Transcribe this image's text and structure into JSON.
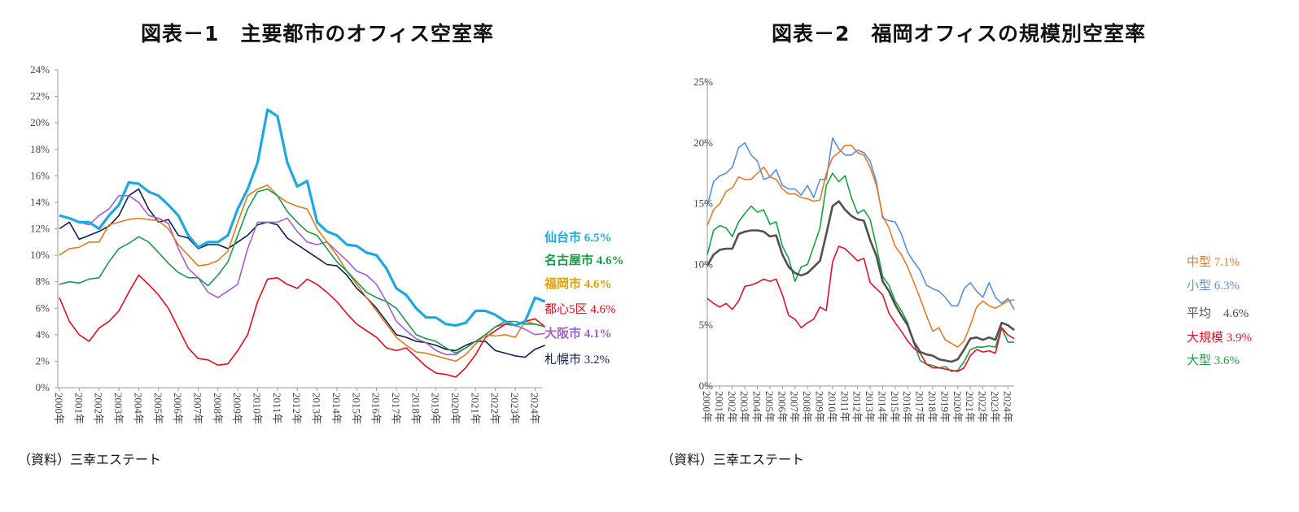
{
  "chart_data": [
    {
      "type": "line",
      "title": "図表－1　主要都市のオフィス空室率",
      "source": "（資料）三幸エステート",
      "ylim": [
        0,
        24
      ],
      "yticks": [
        "0%",
        "2%",
        "4%",
        "6%",
        "8%",
        "10%",
        "12%",
        "14%",
        "16%",
        "18%",
        "20%",
        "22%",
        "24%"
      ],
      "ytick_values": [
        0,
        2,
        4,
        6,
        8,
        10,
        12,
        14,
        16,
        18,
        20,
        22,
        24
      ],
      "xticks": [
        "2000年",
        "2001年",
        "2002年",
        "2003年",
        "2004年",
        "2005年",
        "2006年",
        "2007年",
        "2008年",
        "2009年",
        "2010年",
        "2011年",
        "2012年",
        "2013年",
        "2014年",
        "2015年",
        "2016年",
        "2017年",
        "2018年",
        "2019年",
        "2020年",
        "2021年",
        "2022年",
        "2023年",
        "2024年"
      ],
      "x_start": 2000,
      "x_step": 0.5,
      "series": [
        {
          "name": "仙台市",
          "label": "仙台市 6.5%",
          "color": "#1ea8e0",
          "bold": true,
          "width": 3.2,
          "values": [
            13.0,
            12.8,
            12.5,
            12.5,
            12.0,
            13.0,
            13.8,
            15.5,
            15.4,
            14.8,
            14.5,
            13.8,
            13.0,
            11.5,
            10.6,
            11.0,
            11.0,
            11.5,
            13.5,
            15.0,
            17.0,
            21.0,
            20.5,
            17.0,
            15.2,
            15.6,
            12.5,
            11.8,
            11.5,
            10.8,
            10.7,
            10.2,
            10.0,
            9.0,
            7.5,
            7.0,
            6.0,
            5.3,
            5.3,
            4.8,
            4.7,
            4.9,
            5.8,
            5.8,
            5.5,
            5.0,
            4.7,
            5.0,
            6.8,
            6.5
          ]
        },
        {
          "name": "名古屋市",
          "label": "名古屋市 4.6%",
          "color": "#1a9a4a",
          "bold": true,
          "width": 1.6,
          "values": [
            7.8,
            8.0,
            7.9,
            8.2,
            8.3,
            9.5,
            10.5,
            10.9,
            11.4,
            11.0,
            10.2,
            9.4,
            8.7,
            8.3,
            8.3,
            7.7,
            8.5,
            9.5,
            11.5,
            13.5,
            14.8,
            15.0,
            14.5,
            13.3,
            12.5,
            11.8,
            11.5,
            10.5,
            9.5,
            8.8,
            8.0,
            7.2,
            6.8,
            6.5,
            6.0,
            5.0,
            4.0,
            3.7,
            3.5,
            3.0,
            2.6,
            3.0,
            3.5,
            4.0,
            4.6,
            5.0,
            5.0,
            4.8,
            4.8,
            4.6
          ]
        },
        {
          "name": "福岡市",
          "label": "福岡市 4.6%",
          "color": "#e07b22",
          "label_color": "#e0a000",
          "bold": true,
          "width": 1.6,
          "values": [
            10.0,
            10.5,
            10.6,
            11.0,
            11.0,
            12.3,
            12.5,
            12.7,
            12.8,
            12.7,
            12.6,
            12.0,
            10.8,
            10.0,
            9.2,
            9.3,
            9.6,
            10.3,
            12.5,
            14.5,
            15.0,
            15.3,
            14.5,
            14.0,
            13.7,
            13.5,
            12.0,
            11.0,
            10.0,
            8.8,
            7.8,
            6.8,
            5.8,
            4.8,
            3.8,
            3.2,
            2.7,
            2.6,
            2.4,
            2.2,
            2.0,
            2.5,
            3.3,
            4.0,
            3.9,
            4.0,
            3.8,
            5.0,
            4.8,
            4.6
          ]
        },
        {
          "name": "都心5区",
          "label": "都心5区 4.6%",
          "color": "#e00d1a",
          "bold": false,
          "width": 1.6,
          "values": [
            6.8,
            5.0,
            4.0,
            3.5,
            4.5,
            5.0,
            5.8,
            7.2,
            8.5,
            7.8,
            7.0,
            6.0,
            4.5,
            3.0,
            2.2,
            2.1,
            1.7,
            1.8,
            2.8,
            4.0,
            6.5,
            8.2,
            8.3,
            7.8,
            7.5,
            8.2,
            7.8,
            7.2,
            6.5,
            5.6,
            4.8,
            4.3,
            3.8,
            3.0,
            2.8,
            3.0,
            2.3,
            1.6,
            1.1,
            1.0,
            0.8,
            1.5,
            2.5,
            3.8,
            4.3,
            4.8,
            4.7,
            5.0,
            5.2,
            4.6
          ]
        },
        {
          "name": "大阪市",
          "label": "大阪市 4.1%",
          "color": "#a35fd0",
          "bold": true,
          "width": 1.6,
          "values": [
            13.0,
            12.8,
            12.5,
            12.3,
            13.0,
            13.5,
            14.5,
            14.5,
            14.0,
            13.0,
            12.8,
            12.4,
            10.5,
            9.0,
            8.3,
            7.2,
            6.8,
            7.3,
            7.8,
            10.5,
            12.5,
            12.5,
            12.5,
            12.8,
            11.8,
            11.0,
            10.8,
            11.0,
            10.3,
            9.6,
            8.8,
            8.5,
            7.8,
            6.5,
            5.0,
            4.3,
            3.7,
            3.4,
            2.8,
            2.5,
            2.5,
            3.0,
            3.5,
            4.0,
            4.6,
            4.8,
            4.7,
            4.4,
            4.0,
            4.1
          ]
        },
        {
          "name": "札幌市",
          "label": "札幌市 3.2%",
          "color": "#0f2050",
          "bold": false,
          "width": 1.6,
          "values": [
            12.0,
            12.5,
            11.2,
            11.5,
            11.8,
            12.2,
            13.0,
            14.5,
            15.0,
            13.5,
            12.5,
            12.7,
            11.5,
            11.3,
            10.5,
            10.8,
            10.8,
            10.5,
            11.0,
            11.5,
            12.3,
            12.5,
            12.3,
            11.3,
            10.8,
            10.3,
            9.8,
            9.3,
            9.2,
            8.5,
            7.5,
            6.8,
            6.0,
            5.0,
            4.0,
            3.8,
            3.5,
            3.4,
            3.2,
            2.9,
            2.8,
            3.2,
            3.5,
            3.5,
            2.8,
            2.6,
            2.4,
            2.3,
            2.9,
            3.2
          ]
        }
      ]
    },
    {
      "type": "line",
      "title": "図表－2　福岡オフィスの規模別空室率",
      "source": "（資料）三幸エステート",
      "ylim": [
        0,
        25
      ],
      "yticks": [
        "0%",
        "5%",
        "10%",
        "15%",
        "20%",
        "25%"
      ],
      "ytick_values": [
        0,
        5,
        10,
        15,
        20,
        25
      ],
      "xticks": [
        "2000年",
        "2001年",
        "2002年",
        "2003年",
        "2004年",
        "2005年",
        "2006年",
        "2007年",
        "2008年",
        "2009年",
        "2010年",
        "2011年",
        "2012年",
        "2013年",
        "2014年",
        "2015年",
        "2016年",
        "2017年",
        "2018年",
        "2019年",
        "2020年",
        "2021年",
        "2022年",
        "2023年",
        "2024年"
      ],
      "x_start": 2000,
      "x_step": 0.5,
      "series": [
        {
          "name": "中型",
          "label": "中型 7.1%",
          "color": "#e07b30",
          "width": 1.6,
          "values": [
            13.2,
            14.5,
            15.0,
            16.0,
            16.3,
            17.2,
            17.0,
            17.0,
            17.5,
            18.0,
            17.2,
            17.0,
            16.2,
            15.8,
            15.8,
            15.5,
            15.4,
            15.2,
            15.3,
            17.5,
            18.8,
            19.2,
            19.8,
            19.8,
            19.2,
            19.0,
            18.0,
            16.5,
            14.0,
            13.0,
            11.5,
            10.8,
            9.8,
            8.5,
            7.2,
            5.8,
            4.5,
            4.8,
            3.8,
            3.5,
            3.2,
            3.7,
            5.0,
            6.5,
            7.0,
            6.6,
            6.4,
            6.7,
            7.0,
            7.1
          ]
        },
        {
          "name": "小型",
          "label": "小型 6.3%",
          "color": "#5b8fd0",
          "width": 1.6,
          "values": [
            14.8,
            16.8,
            17.3,
            17.5,
            18.0,
            19.6,
            20.0,
            19.0,
            18.5,
            17.0,
            17.2,
            17.8,
            16.5,
            16.2,
            16.2,
            15.7,
            16.5,
            15.5,
            17.0,
            17.0,
            20.4,
            19.5,
            19.0,
            19.0,
            19.4,
            19.2,
            18.5,
            16.8,
            13.8,
            13.6,
            13.5,
            12.5,
            11.0,
            10.2,
            9.5,
            8.3,
            8.0,
            7.8,
            7.3,
            6.6,
            6.6,
            8.0,
            8.5,
            7.8,
            7.3,
            8.5,
            7.3,
            6.8,
            7.2,
            6.3
          ]
        },
        {
          "name": "平均",
          "label": "平均　4.6%",
          "color": "#505050",
          "width": 2.6,
          "values": [
            9.9,
            10.8,
            11.2,
            11.3,
            11.3,
            12.5,
            12.7,
            12.8,
            12.8,
            12.7,
            12.3,
            12.4,
            10.8,
            9.8,
            9.3,
            9.1,
            9.3,
            9.8,
            10.3,
            12.5,
            14.8,
            15.2,
            14.5,
            14.0,
            13.7,
            13.6,
            12.0,
            10.7,
            8.6,
            7.8,
            6.7,
            5.8,
            5.0,
            3.6,
            2.8,
            2.6,
            2.5,
            2.2,
            2.1,
            2.0,
            2.2,
            3.0,
            3.9,
            4.0,
            3.8,
            4.0,
            3.8,
            5.2,
            5.0,
            4.6
          ]
        },
        {
          "name": "大規模",
          "label": "大規模 3.9%",
          "color": "#e0102a",
          "width": 1.6,
          "values": [
            7.2,
            6.8,
            6.5,
            6.8,
            6.3,
            7.0,
            8.2,
            8.3,
            8.5,
            8.8,
            8.6,
            8.8,
            7.5,
            5.8,
            5.5,
            4.8,
            5.2,
            5.5,
            6.5,
            6.2,
            10.2,
            11.5,
            11.3,
            10.8,
            10.3,
            10.5,
            8.5,
            8.0,
            7.5,
            6.0,
            5.2,
            4.5,
            3.7,
            3.1,
            2.7,
            1.8,
            1.5,
            1.5,
            1.4,
            1.3,
            1.2,
            1.5,
            2.5,
            3.0,
            2.8,
            2.9,
            2.7,
            4.8,
            4.2,
            3.9
          ]
        },
        {
          "name": "大型",
          "label": "大型 3.6%",
          "color": "#1aa040",
          "width": 1.6,
          "values": [
            10.8,
            12.8,
            13.2,
            13.0,
            12.3,
            13.5,
            14.2,
            14.8,
            14.3,
            14.5,
            13.3,
            13.5,
            11.5,
            10.5,
            8.6,
            9.8,
            10.0,
            11.5,
            13.0,
            16.5,
            17.5,
            16.8,
            17.3,
            15.5,
            14.2,
            14.5,
            13.7,
            11.5,
            9.0,
            8.3,
            7.0,
            6.2,
            5.2,
            3.5,
            2.1,
            1.8,
            1.7,
            1.5,
            1.6,
            1.2,
            1.3,
            2.0,
            3.0,
            3.2,
            3.2,
            3.3,
            3.2,
            4.8,
            3.6,
            3.6
          ]
        }
      ]
    }
  ]
}
